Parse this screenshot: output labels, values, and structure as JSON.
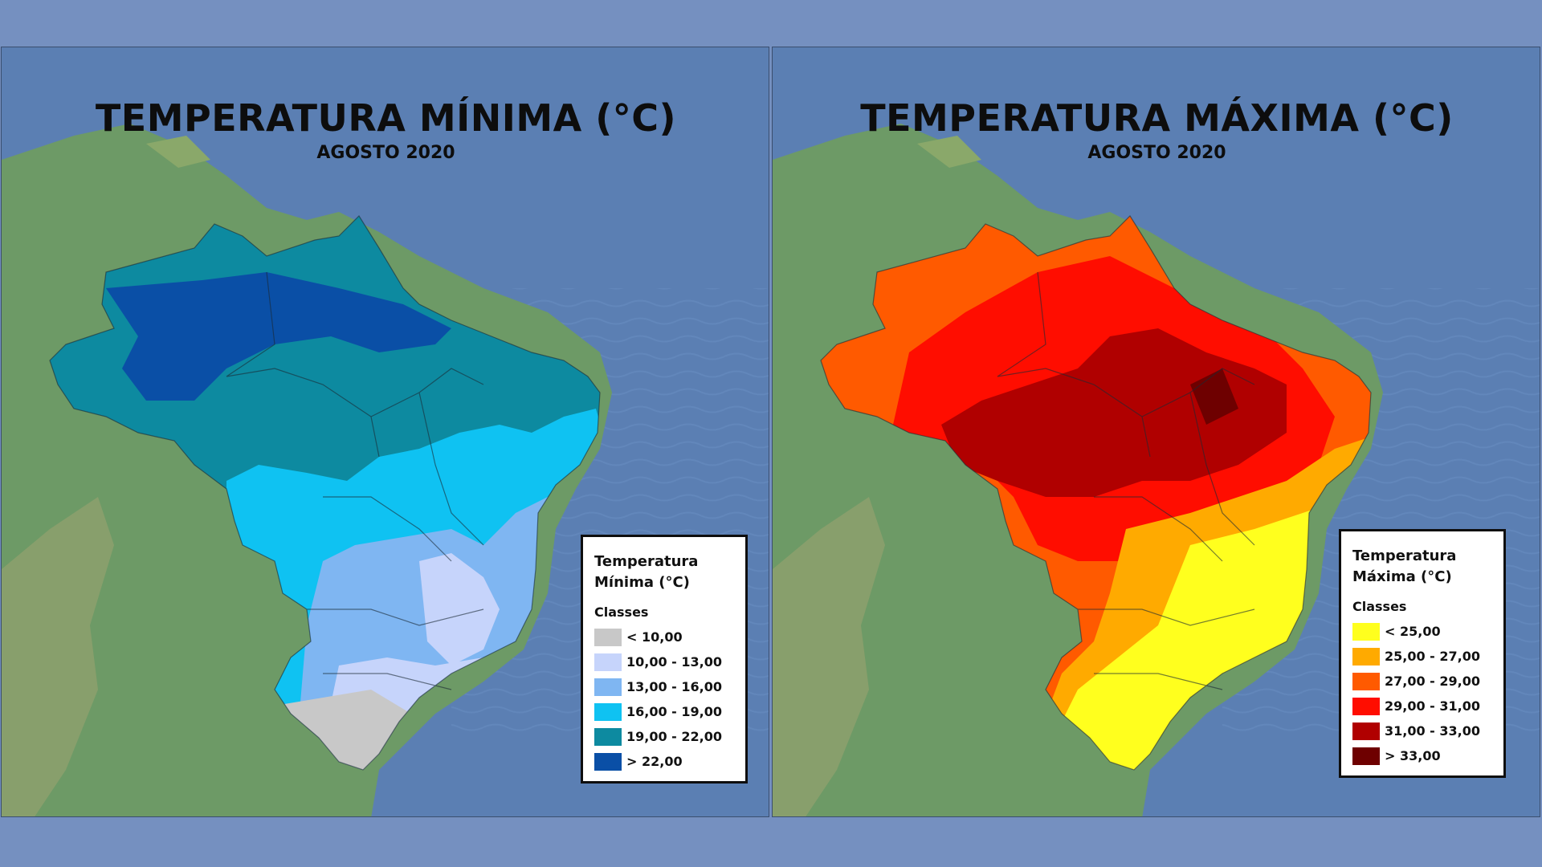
{
  "panels": [
    {
      "id": "min",
      "title": "TEMPERATURA MÍNIMA (°C)",
      "subtitle": "AGOSTO 2020",
      "legend": {
        "title": "Temperatura Mínima (°C)",
        "classes_label": "Classes",
        "items": [
          {
            "label": "< 10,00",
            "color": "#c8c8c8"
          },
          {
            "label": "10,00 - 13,00",
            "color": "#c6d4fb"
          },
          {
            "label": "13,00 - 16,00",
            "color": "#7fb6f2"
          },
          {
            "label": "16,00 - 19,00",
            "color": "#0fc2f2"
          },
          {
            "label": "19,00 - 22,00",
            "color": "#0d8aa0"
          },
          {
            "label": "> 22,00",
            "color": "#0a4fa6"
          }
        ]
      }
    },
    {
      "id": "max",
      "title": "TEMPERATURA MÁXIMA (°C)",
      "subtitle": "AGOSTO 2020",
      "legend": {
        "title": "Temperatura Máxima (°C)",
        "classes_label": "Classes",
        "items": [
          {
            "label": "< 25,00",
            "color": "#ffff1e"
          },
          {
            "label": "25,00 - 27,00",
            "color": "#ffaa00"
          },
          {
            "label": "27,00 - 29,00",
            "color": "#ff5a00"
          },
          {
            "label": "29,00 - 31,00",
            "color": "#ff0d00"
          },
          {
            "label": "31,00 - 33,00",
            "color": "#b00000"
          },
          {
            "label": "> 33,00",
            "color": "#6e0000"
          }
        ]
      }
    }
  ],
  "colors": {
    "page_background": "#7590c0",
    "ocean": "#5b7fb3",
    "land": "#6d9a66"
  }
}
